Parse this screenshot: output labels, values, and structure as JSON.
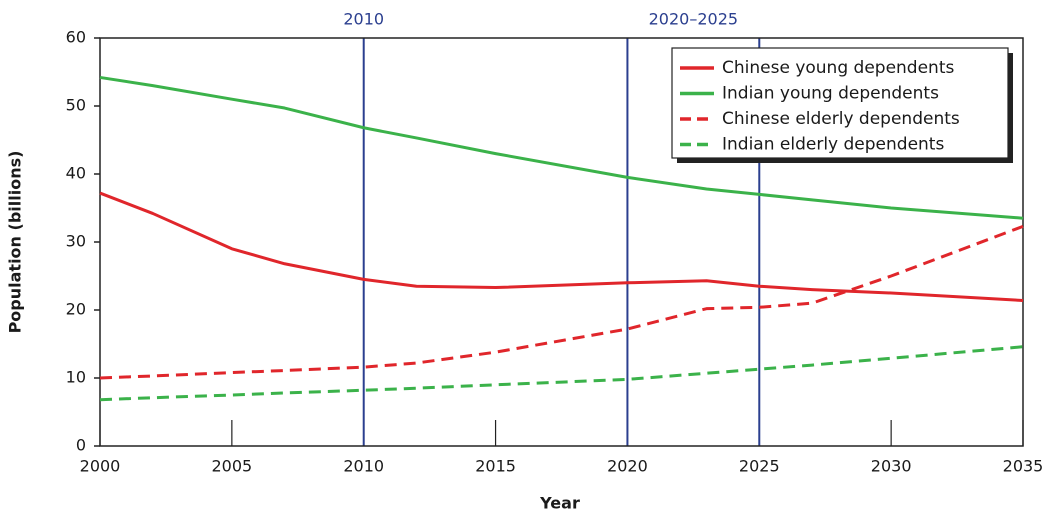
{
  "chart_data": {
    "type": "line",
    "xlabel": "Year",
    "ylabel": "Population (billions)",
    "x": [
      2000,
      2002,
      2005,
      2007,
      2010,
      2012,
      2015,
      2020,
      2023,
      2025,
      2027,
      2030,
      2035
    ],
    "series": [
      {
        "name": "Chinese young dependents",
        "color": "#e0262b",
        "dash": false,
        "values": [
          37.2,
          34.2,
          29,
          26.8,
          24.5,
          23.5,
          23.3,
          24,
          24.3,
          23.5,
          23,
          22.5,
          21.4
        ]
      },
      {
        "name": "Indian young dependents",
        "color": "#3bb24a",
        "dash": false,
        "values": [
          54.2,
          53,
          51,
          49.7,
          46.8,
          45.3,
          43,
          39.5,
          37.8,
          37,
          36.2,
          35,
          33.5
        ]
      },
      {
        "name": "Chinese elderly dependents",
        "color": "#e0262b",
        "dash": true,
        "values": [
          10,
          10.3,
          10.8,
          11.1,
          11.6,
          12.2,
          13.8,
          17.2,
          20.2,
          20.4,
          21,
          25,
          32.3
        ]
      },
      {
        "name": "Indian elderly dependents",
        "color": "#3bb24a",
        "dash": true,
        "values": [
          6.8,
          7.1,
          7.5,
          7.8,
          8.2,
          8.5,
          9,
          9.8,
          10.7,
          11.3,
          11.9,
          12.9,
          14.6
        ]
      }
    ],
    "reference_lines": {
      "color": "#2b3f8f",
      "x": [
        2010,
        2020,
        2025
      ]
    },
    "annotations": [
      {
        "text": "2010",
        "x": [
          2010,
          2010
        ]
      },
      {
        "text": "2020–2025",
        "x": [
          2020,
          2025
        ]
      }
    ],
    "xlim": [
      2000,
      2035
    ],
    "xticks": [
      2000,
      2005,
      2010,
      2015,
      2020,
      2025,
      2030,
      2035
    ],
    "ylim": [
      0,
      60
    ],
    "yticks": [
      0,
      10,
      20,
      30,
      40,
      50,
      60
    ],
    "legend": "upper right"
  }
}
